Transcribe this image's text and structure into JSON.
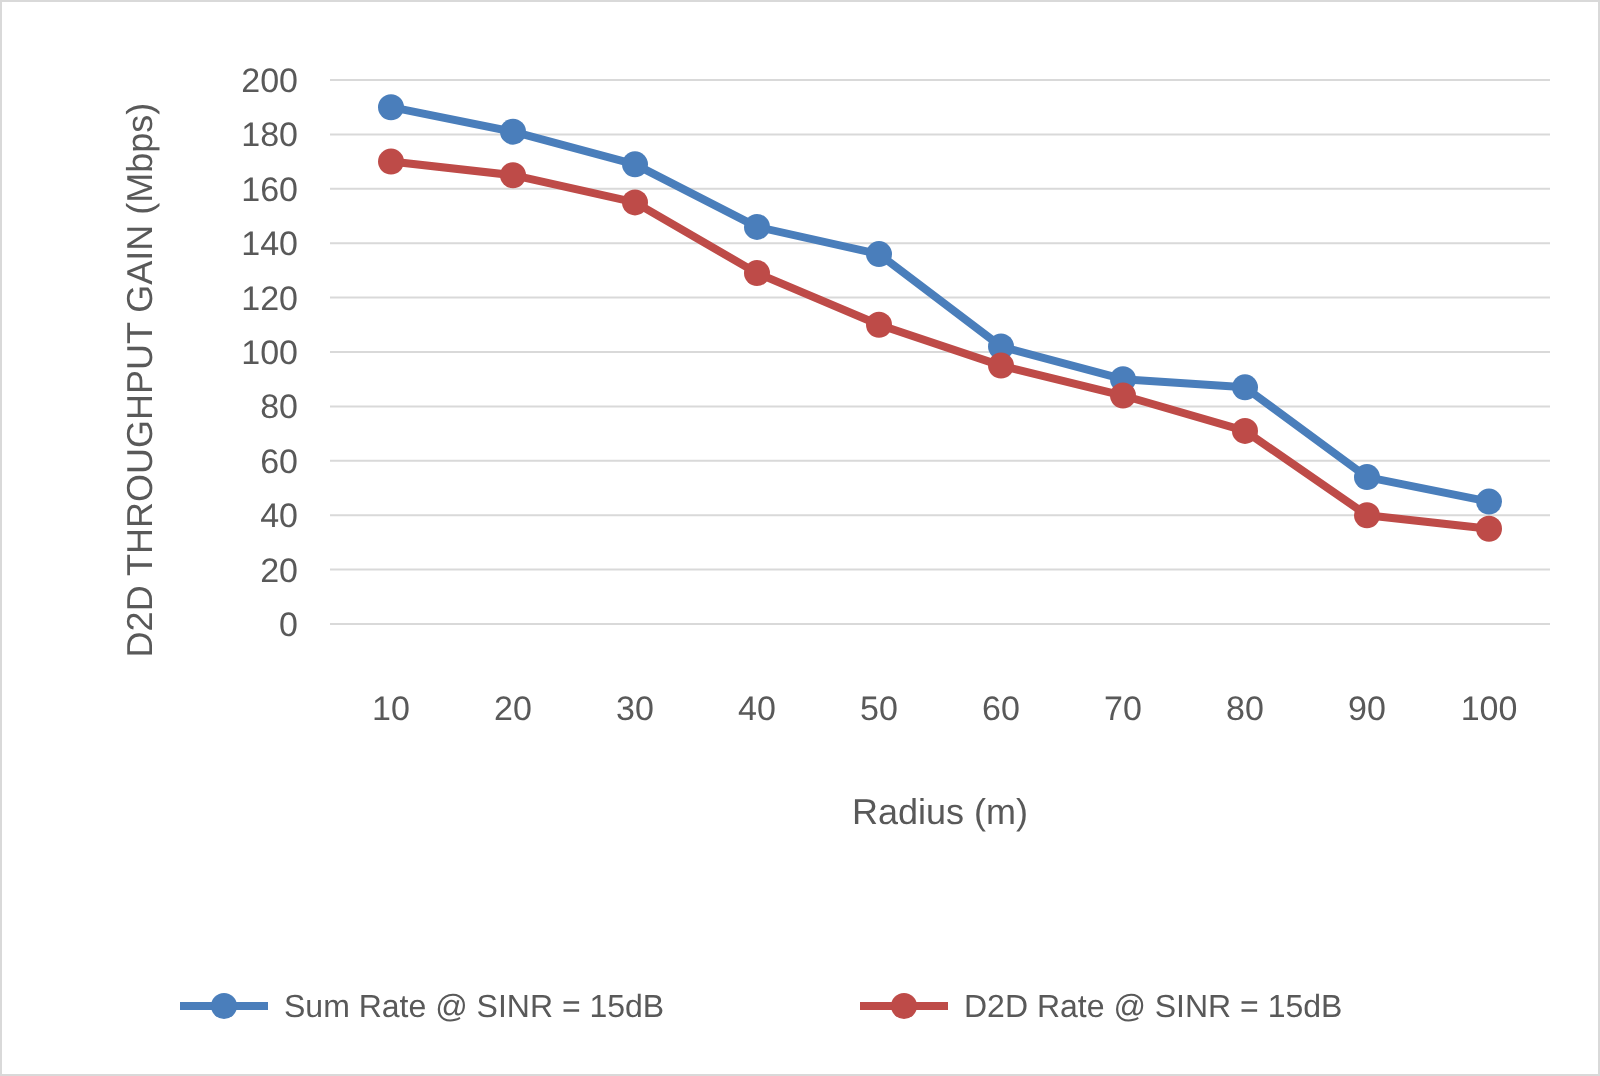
{
  "chart_data": {
    "type": "line",
    "xlabel": "Radius (m)",
    "ylabel": "D2D THROUGHPUT  GAIN (Mbps)",
    "categories": [
      "10",
      "20",
      "30",
      "40",
      "50",
      "60",
      "70",
      "80",
      "90",
      "100"
    ],
    "series": [
      {
        "name": "Sum Rate @ SINR = 15dB",
        "color": "#4a7ebb",
        "values": [
          190,
          181,
          169,
          146,
          136,
          102,
          90,
          87,
          54,
          45
        ]
      },
      {
        "name": "D2D Rate @ SINR = 15dB",
        "color": "#be4b48",
        "values": [
          170,
          165,
          155,
          129,
          110,
          95,
          84,
          71,
          40,
          35
        ]
      }
    ],
    "ylim": [
      0,
      200
    ],
    "yticks": [
      0,
      20,
      40,
      60,
      80,
      100,
      120,
      140,
      160,
      180,
      200
    ],
    "grid": "y",
    "legend": "bottom",
    "marker": "circle",
    "line_style": "solid"
  }
}
